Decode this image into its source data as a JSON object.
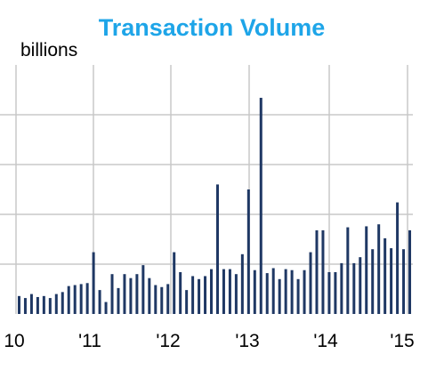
{
  "chart_data": {
    "type": "bar",
    "title": "Transaction Volume",
    "ylabel": "billions",
    "xlabel": "",
    "x_tick_labels": [
      "10",
      "'11",
      "'12",
      "'13",
      "'14",
      "'15"
    ],
    "grid": true,
    "colors": {
      "title": "#1ea5e8",
      "bar": "#1f3864",
      "grid": "#c8c8c8"
    },
    "series": [
      {
        "values": [
          0.18,
          0.16,
          0.2,
          0.17,
          0.18,
          0.16,
          0.2,
          0.22,
          0.28,
          0.29,
          0.3,
          0.31,
          0.62,
          0.24,
          0.12,
          0.4,
          0.26,
          0.4,
          0.36,
          0.4,
          0.49,
          0.36,
          0.29,
          0.27,
          0.3,
          0.62,
          0.42,
          0.24,
          0.38,
          0.35,
          0.38,
          0.45,
          1.3,
          0.45,
          0.45,
          0.4,
          0.6,
          1.25,
          0.44,
          2.17,
          0.41,
          0.46,
          0.35,
          0.45,
          0.44,
          0.35,
          0.44,
          0.62,
          0.84,
          0.84,
          0.42,
          0.42,
          0.51,
          0.87,
          0.51,
          0.57,
          0.88,
          0.65,
          0.9,
          0.76,
          0.66,
          1.12,
          0.65,
          0.84
        ]
      }
    ]
  }
}
